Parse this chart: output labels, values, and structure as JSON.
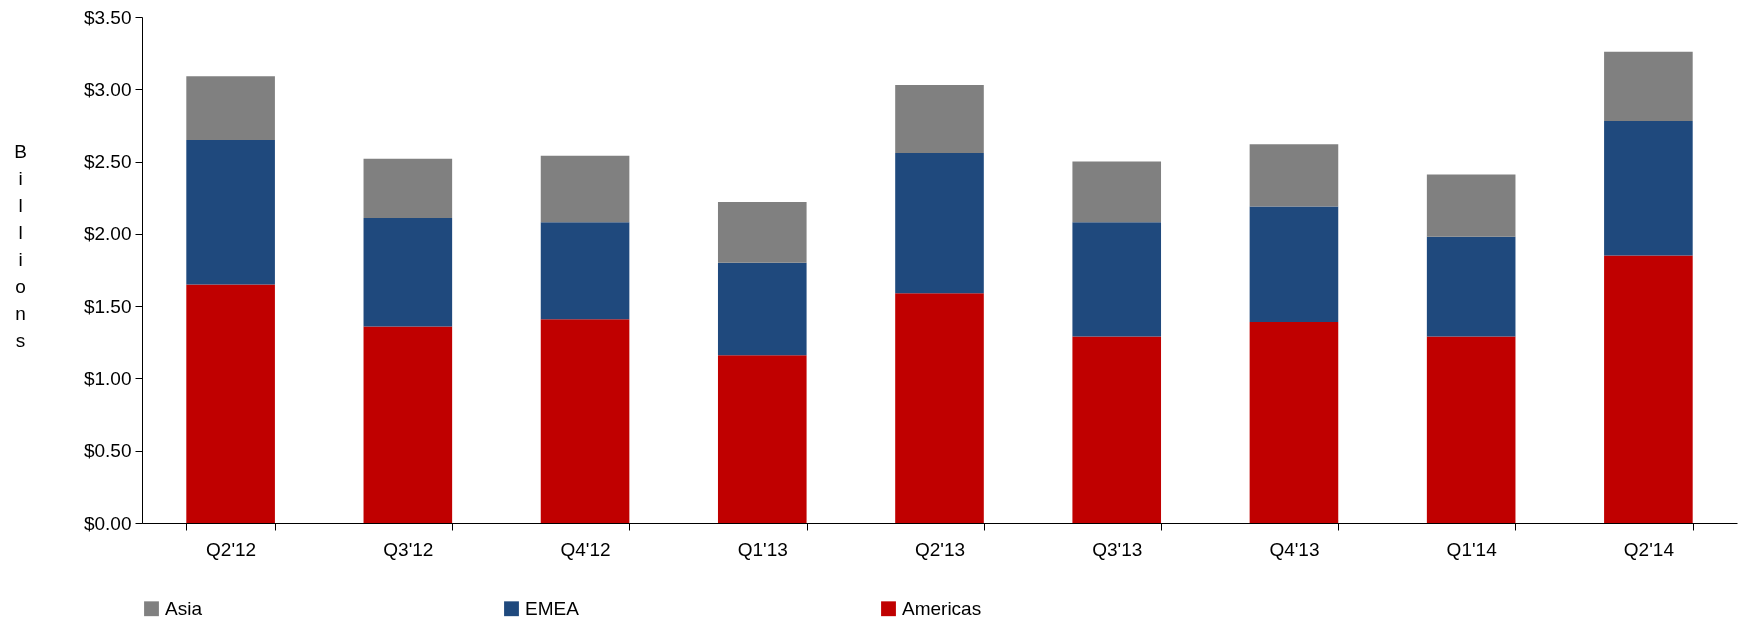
{
  "chart_data": {
    "type": "bar",
    "stacked": true,
    "ylabel": "Billions",
    "categories": [
      "Q2'12",
      "Q3'12",
      "Q4'12",
      "Q1'13",
      "Q2'13",
      "Q3'13",
      "Q4'13",
      "Q1'14",
      "Q2'14"
    ],
    "series": [
      {
        "name": "Americas",
        "color": "#c00000",
        "values": [
          1.65,
          1.36,
          1.41,
          1.16,
          1.59,
          1.29,
          1.39,
          1.29,
          1.85
        ]
      },
      {
        "name": "EMEA",
        "color": "#1f497d",
        "values": [
          1.0,
          0.75,
          0.67,
          0.64,
          0.97,
          0.79,
          0.8,
          0.69,
          0.93
        ]
      },
      {
        "name": "Asia",
        "color": "#808080",
        "values": [
          0.44,
          0.41,
          0.46,
          0.42,
          0.47,
          0.42,
          0.43,
          0.43,
          0.48
        ]
      }
    ],
    "ylim": [
      0,
      3.5
    ],
    "yticks": [
      {
        "value": 0,
        "label": "$0.00"
      },
      {
        "value": 0.5,
        "label": "$0.50"
      },
      {
        "value": 1,
        "label": "$1.00"
      },
      {
        "value": 1.5,
        "label": "$1.50"
      },
      {
        "value": 2,
        "label": "$2.00"
      },
      {
        "value": 2.5,
        "label": "$2.50"
      },
      {
        "value": 3,
        "label": "$3.00"
      },
      {
        "value": 3.5,
        "label": "$3.50"
      }
    ],
    "grid": false,
    "legend": "bottom"
  }
}
